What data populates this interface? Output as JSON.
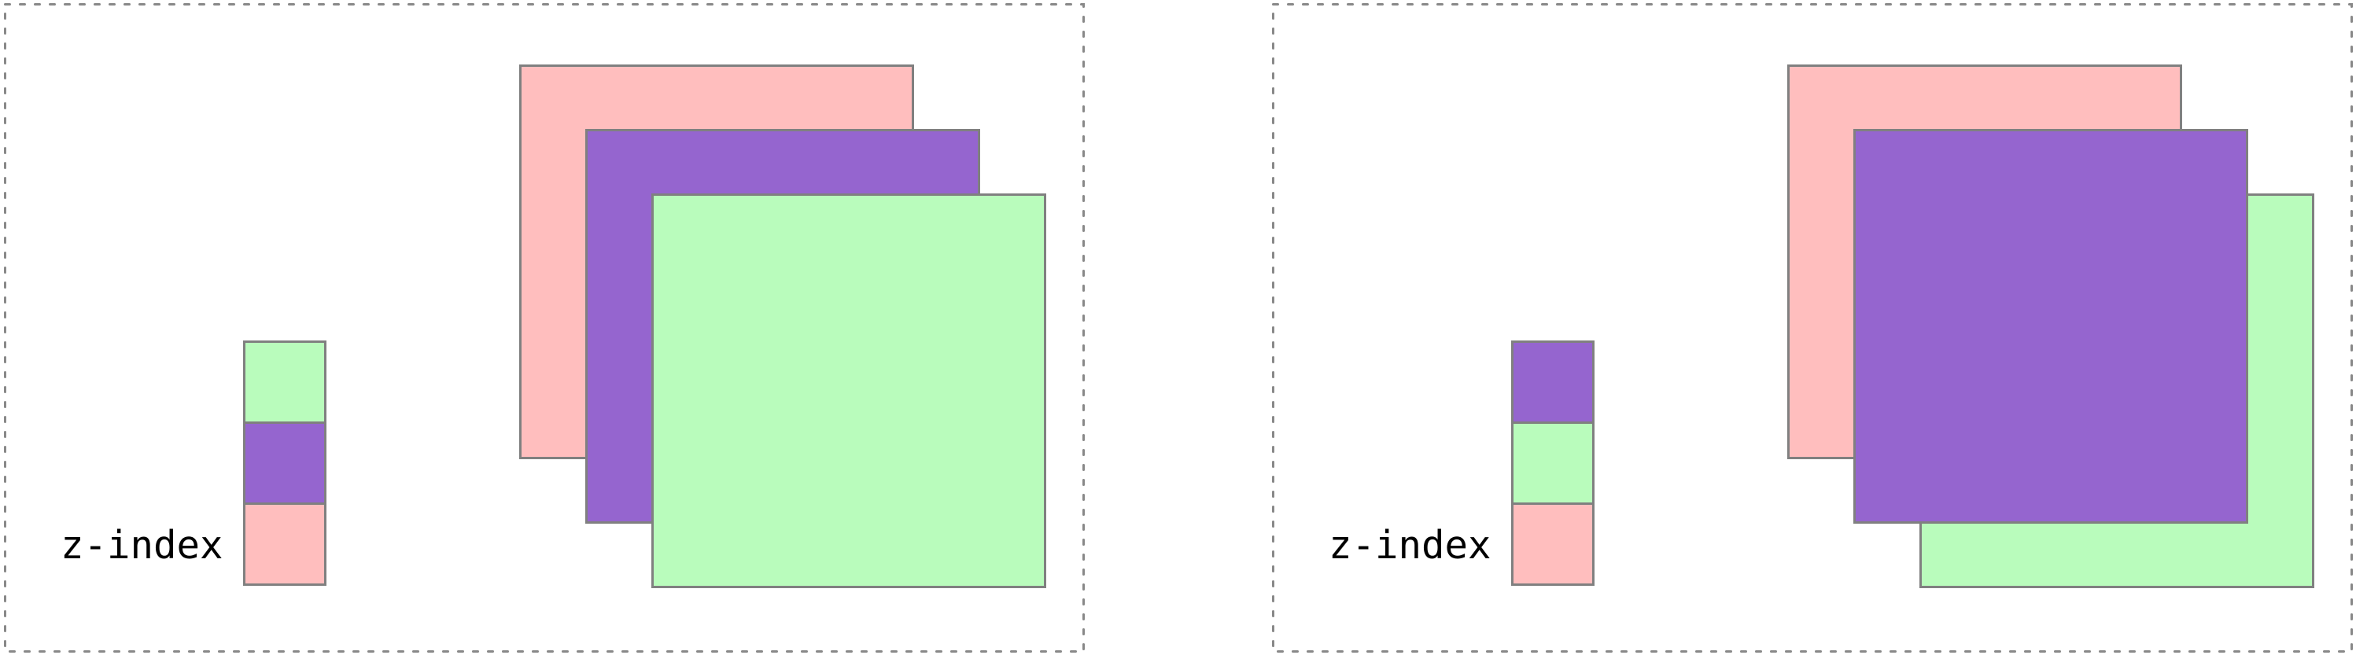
{
  "figure": {
    "label_text": "z-index",
    "colors": {
      "pink": "#ffbebe",
      "purple": "#9565cf",
      "green": "#b9fcbc",
      "square_border": "#808080",
      "panel_border": "#888888",
      "label_text_color": "#000000",
      "background": "#ffffff"
    },
    "panels": [
      {
        "id": "natural-stacking",
        "label": "z-index",
        "legend_top_to_bottom": [
          "green",
          "purple",
          "pink"
        ],
        "squares_back_to_front": [
          "pink",
          "purple",
          "green"
        ]
      },
      {
        "id": "z-index-stacking",
        "label": "z-index",
        "legend_top_to_bottom": [
          "purple",
          "green",
          "pink"
        ],
        "squares_back_to_front": [
          "pink",
          "green",
          "purple"
        ]
      }
    ]
  }
}
